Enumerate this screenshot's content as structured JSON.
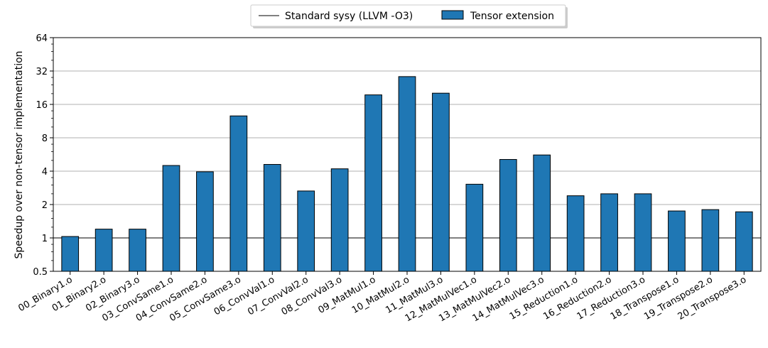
{
  "chart_data": {
    "type": "bar",
    "title": "",
    "xlabel": "",
    "ylabel": "Speedup over non-tensor implementation",
    "yscale": "log2",
    "ylim": [
      0.5,
      64
    ],
    "yticks": [
      0.5,
      1,
      2,
      4,
      8,
      16,
      32,
      64
    ],
    "ytick_labels": [
      "0.5",
      "1",
      "2",
      "4",
      "8",
      "16",
      "32",
      "64"
    ],
    "grid": "horizontal",
    "legend_position": "top-center",
    "categories": [
      "00_Binary1.o",
      "01_Binary2.o",
      "02_Binary3.o",
      "03_ConvSame1.o",
      "04_ConvSame2.o",
      "05_ConvSame3.o",
      "06_ConvVal1.o",
      "07_ConvVal2.o",
      "08_ConvVal3.o",
      "09_MatMul1.o",
      "10_MatMul2.o",
      "11_MatMul3.o",
      "12_MatMulVec1.o",
      "13_MatMulVec2.o",
      "14_MatMulVec3.o",
      "15_Reduction1.o",
      "16_Reduction2.o",
      "17_Reduction3.o",
      "18_Transpose1.o",
      "19_Transpose2.o",
      "20_Transpose3.o"
    ],
    "series": [
      {
        "name": "Tensor extension",
        "color": "#1f77b4",
        "values": [
          1.03,
          1.2,
          1.2,
          4.5,
          3.95,
          12.6,
          4.6,
          2.65,
          4.2,
          19.5,
          28.5,
          20.2,
          3.05,
          5.1,
          5.6,
          2.4,
          2.5,
          2.5,
          1.75,
          1.8,
          1.72
        ]
      }
    ],
    "reference_line": {
      "name": "Standard sysy (LLVM -O3)",
      "value": 1,
      "color": "#808080"
    }
  }
}
